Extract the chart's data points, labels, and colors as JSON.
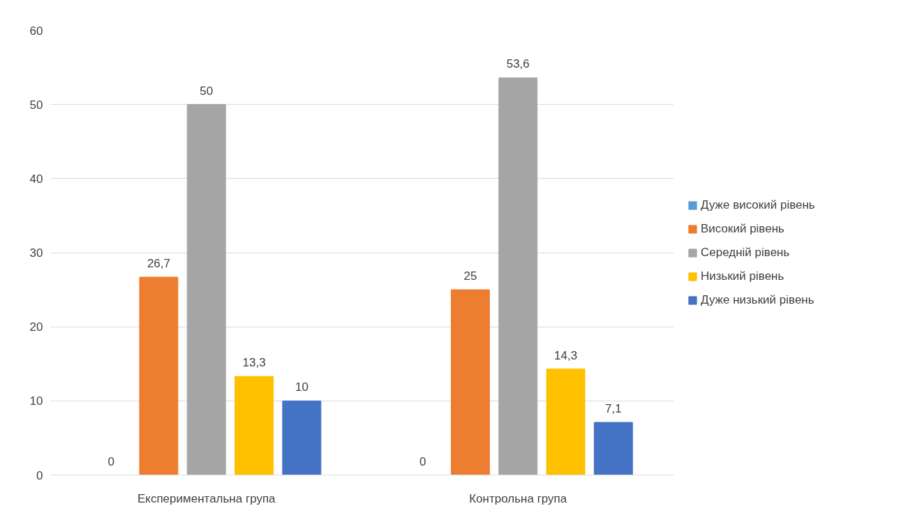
{
  "chart_data": {
    "type": "bar",
    "categories": [
      "Експериментальна група",
      "Контрольна група"
    ],
    "series": [
      {
        "name": "Дуже високий рівень",
        "color": "#5b9bd5",
        "values": [
          0,
          0
        ],
        "value_labels": [
          "0",
          "0"
        ]
      },
      {
        "name": "Високий рівень",
        "color": "#ed7d31",
        "values": [
          26.7,
          25
        ],
        "value_labels": [
          "26,7",
          "25"
        ]
      },
      {
        "name": "Середній рівень",
        "color": "#a5a5a5",
        "values": [
          50,
          53.6
        ],
        "value_labels": [
          "50",
          "53,6"
        ]
      },
      {
        "name": "Низький рівень",
        "color": "#ffc000",
        "values": [
          13.3,
          14.3
        ],
        "value_labels": [
          "13,3",
          "14,3"
        ]
      },
      {
        "name": "Дуже низький рівень",
        "color": "#4472c4",
        "values": [
          10,
          7.1
        ],
        "value_labels": [
          "10",
          "7,1"
        ]
      }
    ],
    "ylim": [
      0,
      60
    ],
    "yticks": [
      0,
      10,
      20,
      30,
      40,
      50,
      60
    ],
    "grid": "y",
    "legend": "right"
  }
}
